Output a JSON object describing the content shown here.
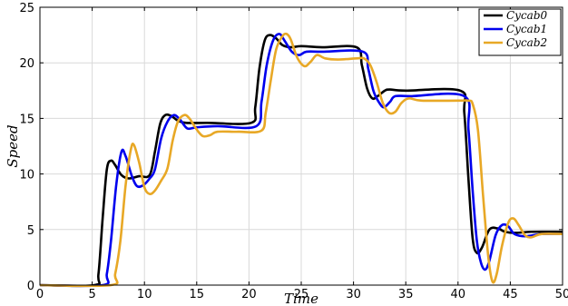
{
  "chart_data": {
    "type": "line",
    "xlabel": "Time",
    "ylabel": "Speed",
    "xlim": [
      0,
      50
    ],
    "ylim": [
      0,
      25
    ],
    "xticks": [
      0,
      5,
      10,
      15,
      20,
      25,
      30,
      35,
      40,
      45,
      50
    ],
    "yticks": [
      0,
      5,
      10,
      15,
      20,
      25
    ],
    "grid": true,
    "legend_position": "top-right",
    "series": [
      {
        "name": "Cycab0",
        "color": "#000000",
        "points": [
          [
            0,
            0
          ],
          [
            5.2,
            0
          ],
          [
            5.6,
            1
          ],
          [
            6.0,
            6
          ],
          [
            6.4,
            10.4
          ],
          [
            6.8,
            11.2
          ],
          [
            7.2,
            10.8
          ],
          [
            7.8,
            9.9
          ],
          [
            8.5,
            9.6
          ],
          [
            9.5,
            9.8
          ],
          [
            10.5,
            9.9
          ],
          [
            11.0,
            12
          ],
          [
            11.5,
            14.5
          ],
          [
            12.0,
            15.3
          ],
          [
            12.6,
            15.2
          ],
          [
            13.2,
            14.8
          ],
          [
            14,
            14.6
          ],
          [
            16,
            14.6
          ],
          [
            20.2,
            14.6
          ],
          [
            20.6,
            16
          ],
          [
            21.0,
            19.5
          ],
          [
            21.5,
            22.0
          ],
          [
            22.0,
            22.5
          ],
          [
            22.6,
            22.2
          ],
          [
            23.2,
            21.6
          ],
          [
            24,
            21.4
          ],
          [
            25,
            21.5
          ],
          [
            27,
            21.4
          ],
          [
            30.3,
            21.4
          ],
          [
            30.8,
            19.8
          ],
          [
            31.3,
            17.7
          ],
          [
            31.8,
            16.8
          ],
          [
            32.3,
            17.0
          ],
          [
            33,
            17.5
          ],
          [
            33.5,
            17.6
          ],
          [
            35,
            17.5
          ],
          [
            40.2,
            17.5
          ],
          [
            40.6,
            15.5
          ],
          [
            41.0,
            9.5
          ],
          [
            41.4,
            4.2
          ],
          [
            41.8,
            2.9
          ],
          [
            42.3,
            3.4
          ],
          [
            43,
            5.0
          ],
          [
            43.8,
            5.1
          ],
          [
            44.5,
            4.8
          ],
          [
            45.5,
            4.7
          ],
          [
            47,
            4.8
          ],
          [
            50,
            4.8
          ]
        ]
      },
      {
        "name": "Cycab1",
        "color": "#0000ee",
        "points": [
          [
            0,
            0
          ],
          [
            6.0,
            0
          ],
          [
            6.4,
            1
          ],
          [
            6.8,
            4
          ],
          [
            7.3,
            9
          ],
          [
            7.8,
            12.0
          ],
          [
            8.2,
            11.6
          ],
          [
            8.8,
            9.8
          ],
          [
            9.3,
            8.9
          ],
          [
            9.9,
            9.0
          ],
          [
            10.5,
            9.6
          ],
          [
            11.0,
            10.4
          ],
          [
            11.6,
            13.2
          ],
          [
            12.2,
            14.7
          ],
          [
            12.8,
            15.3
          ],
          [
            13.4,
            14.9
          ],
          [
            14.1,
            14.1
          ],
          [
            15,
            14.2
          ],
          [
            17,
            14.3
          ],
          [
            20.7,
            14.3
          ],
          [
            21.2,
            16.5
          ],
          [
            21.7,
            19.8
          ],
          [
            22.3,
            22.0
          ],
          [
            22.9,
            22.6
          ],
          [
            23.4,
            22.0
          ],
          [
            24.1,
            21.0
          ],
          [
            24.8,
            20.7
          ],
          [
            25.5,
            21.0
          ],
          [
            27,
            21.0
          ],
          [
            30.9,
            21.0
          ],
          [
            31.4,
            19.5
          ],
          [
            31.9,
            17.5
          ],
          [
            32.4,
            16.5
          ],
          [
            32.9,
            16.0
          ],
          [
            33.5,
            16.5
          ],
          [
            34,
            17.0
          ],
          [
            35.5,
            17.0
          ],
          [
            40.6,
            17.0
          ],
          [
            41.0,
            14.0
          ],
          [
            41.4,
            8.5
          ],
          [
            41.8,
            4.0
          ],
          [
            42.2,
            2.0
          ],
          [
            42.6,
            1.4
          ],
          [
            43.0,
            2.2
          ],
          [
            43.6,
            4.5
          ],
          [
            44.2,
            5.4
          ],
          [
            44.8,
            5.3
          ],
          [
            45.4,
            4.6
          ],
          [
            46.5,
            4.4
          ],
          [
            48,
            4.6
          ],
          [
            50,
            4.6
          ]
        ]
      },
      {
        "name": "Cycab2",
        "color": "#e8a826",
        "points": [
          [
            0,
            0
          ],
          [
            6.8,
            0
          ],
          [
            7.2,
            1
          ],
          [
            7.7,
            4
          ],
          [
            8.2,
            9
          ],
          [
            8.7,
            12.2
          ],
          [
            9.0,
            12.6
          ],
          [
            9.5,
            11.0
          ],
          [
            10.0,
            8.8
          ],
          [
            10.5,
            8.2
          ],
          [
            11.0,
            8.5
          ],
          [
            11.6,
            9.4
          ],
          [
            12.2,
            10.5
          ],
          [
            12.7,
            13.0
          ],
          [
            13.2,
            14.7
          ],
          [
            13.8,
            15.3
          ],
          [
            14.3,
            15.0
          ],
          [
            15.0,
            14.0
          ],
          [
            15.6,
            13.4
          ],
          [
            16.3,
            13.5
          ],
          [
            17,
            13.8
          ],
          [
            19,
            13.8
          ],
          [
            21.2,
            13.9
          ],
          [
            21.6,
            15.5
          ],
          [
            22.1,
            18.5
          ],
          [
            22.6,
            21.2
          ],
          [
            23.2,
            22.4
          ],
          [
            23.6,
            22.6
          ],
          [
            24.0,
            22.1
          ],
          [
            24.6,
            20.5
          ],
          [
            25.3,
            19.7
          ],
          [
            25.9,
            20.1
          ],
          [
            26.5,
            20.7
          ],
          [
            27.3,
            20.4
          ],
          [
            28.5,
            20.3
          ],
          [
            30.3,
            20.4
          ],
          [
            31.0,
            20.4
          ],
          [
            31.6,
            19.8
          ],
          [
            32.2,
            18.3
          ],
          [
            32.8,
            16.4
          ],
          [
            33.4,
            15.5
          ],
          [
            34.0,
            15.6
          ],
          [
            34.6,
            16.4
          ],
          [
            35.3,
            16.8
          ],
          [
            36.5,
            16.6
          ],
          [
            40.0,
            16.6
          ],
          [
            41.0,
            16.6
          ],
          [
            41.4,
            16.3
          ],
          [
            41.9,
            14.0
          ],
          [
            42.4,
            8.0
          ],
          [
            42.9,
            2.5
          ],
          [
            43.3,
            0.3
          ],
          [
            43.7,
            1.0
          ],
          [
            44.2,
            3.5
          ],
          [
            44.8,
            5.6
          ],
          [
            45.3,
            6.0
          ],
          [
            45.8,
            5.4
          ],
          [
            46.4,
            4.5
          ],
          [
            47,
            4.3
          ],
          [
            48,
            4.6
          ],
          [
            50,
            4.6
          ]
        ]
      }
    ]
  }
}
